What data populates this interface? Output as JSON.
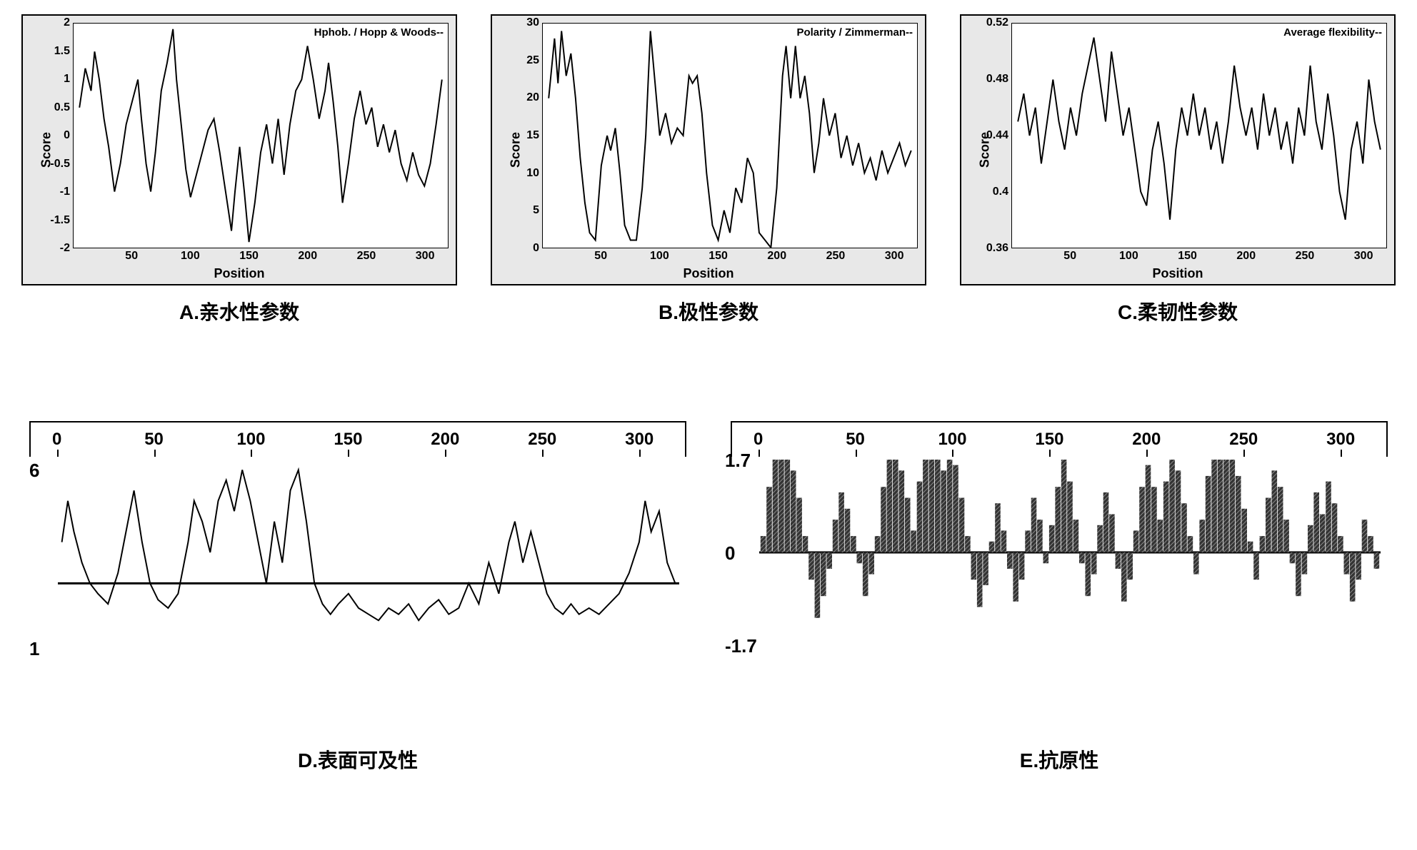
{
  "panelA": {
    "type": "line",
    "legend": "Hphob. / Hopp & Woods--",
    "xlabel": "Position",
    "ylabel": "Score",
    "xlim": [
      0,
      320
    ],
    "ylim": [
      -2,
      2
    ],
    "xticks": [
      50,
      100,
      150,
      200,
      250,
      300
    ],
    "yticks": [
      -2,
      -1.5,
      -1,
      -0.5,
      0,
      0.5,
      1,
      1.5,
      2
    ],
    "background_color": "#e8e8e8",
    "plot_bg": "#ffffff",
    "line_color": "#000000",
    "line_width": 2,
    "title_fontsize": 15,
    "label_fontsize": 18,
    "tick_fontsize": 16,
    "caption": "A.亲水性参数",
    "data": [
      [
        5,
        0.5
      ],
      [
        10,
        1.2
      ],
      [
        15,
        0.8
      ],
      [
        18,
        1.5
      ],
      [
        22,
        1.0
      ],
      [
        26,
        0.3
      ],
      [
        30,
        -0.2
      ],
      [
        35,
        -1.0
      ],
      [
        40,
        -0.5
      ],
      [
        45,
        0.2
      ],
      [
        50,
        0.6
      ],
      [
        55,
        1.0
      ],
      [
        58,
        0.3
      ],
      [
        62,
        -0.5
      ],
      [
        66,
        -1.0
      ],
      [
        70,
        -0.3
      ],
      [
        75,
        0.8
      ],
      [
        80,
        1.3
      ],
      [
        85,
        1.9
      ],
      [
        88,
        1.0
      ],
      [
        92,
        0.2
      ],
      [
        96,
        -0.6
      ],
      [
        100,
        -1.1
      ],
      [
        105,
        -0.7
      ],
      [
        110,
        -0.3
      ],
      [
        115,
        0.1
      ],
      [
        120,
        0.3
      ],
      [
        125,
        -0.3
      ],
      [
        130,
        -1.0
      ],
      [
        135,
        -1.7
      ],
      [
        138,
        -1.0
      ],
      [
        142,
        -0.2
      ],
      [
        146,
        -1.0
      ],
      [
        150,
        -1.9
      ],
      [
        155,
        -1.2
      ],
      [
        160,
        -0.3
      ],
      [
        165,
        0.2
      ],
      [
        170,
        -0.5
      ],
      [
        175,
        0.3
      ],
      [
        180,
        -0.7
      ],
      [
        185,
        0.2
      ],
      [
        190,
        0.8
      ],
      [
        195,
        1.0
      ],
      [
        200,
        1.6
      ],
      [
        205,
        1.0
      ],
      [
        210,
        0.3
      ],
      [
        215,
        0.8
      ],
      [
        218,
        1.3
      ],
      [
        222,
        0.6
      ],
      [
        226,
        -0.2
      ],
      [
        230,
        -1.2
      ],
      [
        235,
        -0.5
      ],
      [
        240,
        0.3
      ],
      [
        245,
        0.8
      ],
      [
        250,
        0.2
      ],
      [
        255,
        0.5
      ],
      [
        260,
        -0.2
      ],
      [
        265,
        0.2
      ],
      [
        270,
        -0.3
      ],
      [
        275,
        0.1
      ],
      [
        280,
        -0.5
      ],
      [
        285,
        -0.8
      ],
      [
        290,
        -0.3
      ],
      [
        295,
        -0.7
      ],
      [
        300,
        -0.9
      ],
      [
        305,
        -0.5
      ],
      [
        310,
        0.2
      ],
      [
        315,
        1.0
      ]
    ]
  },
  "panelB": {
    "type": "line",
    "legend": "Polarity / Zimmerman--",
    "xlabel": "Position",
    "ylabel": "Score",
    "xlim": [
      0,
      320
    ],
    "ylim": [
      0,
      30
    ],
    "xticks": [
      50,
      100,
      150,
      200,
      250,
      300
    ],
    "yticks": [
      0,
      5,
      10,
      15,
      20,
      25,
      30
    ],
    "background_color": "#e8e8e8",
    "plot_bg": "#ffffff",
    "line_color": "#000000",
    "line_width": 2,
    "title_fontsize": 15,
    "label_fontsize": 18,
    "tick_fontsize": 16,
    "caption": "B.极性参数",
    "data": [
      [
        5,
        20
      ],
      [
        10,
        28
      ],
      [
        13,
        22
      ],
      [
        16,
        29
      ],
      [
        20,
        23
      ],
      [
        24,
        26
      ],
      [
        28,
        20
      ],
      [
        32,
        12
      ],
      [
        36,
        6
      ],
      [
        40,
        2
      ],
      [
        45,
        1
      ],
      [
        50,
        11
      ],
      [
        55,
        15
      ],
      [
        58,
        13
      ],
      [
        62,
        16
      ],
      [
        66,
        10
      ],
      [
        70,
        3
      ],
      [
        75,
        1
      ],
      [
        80,
        1
      ],
      [
        85,
        8
      ],
      [
        88,
        15
      ],
      [
        92,
        29
      ],
      [
        96,
        22
      ],
      [
        100,
        15
      ],
      [
        105,
        18
      ],
      [
        110,
        14
      ],
      [
        115,
        16
      ],
      [
        120,
        15
      ],
      [
        125,
        23
      ],
      [
        128,
        22
      ],
      [
        132,
        23
      ],
      [
        136,
        18
      ],
      [
        140,
        10
      ],
      [
        145,
        3
      ],
      [
        150,
        1
      ],
      [
        155,
        5
      ],
      [
        160,
        2
      ],
      [
        165,
        8
      ],
      [
        170,
        6
      ],
      [
        175,
        12
      ],
      [
        180,
        10
      ],
      [
        185,
        2
      ],
      [
        190,
        1
      ],
      [
        195,
        0
      ],
      [
        200,
        8
      ],
      [
        205,
        23
      ],
      [
        208,
        27
      ],
      [
        212,
        20
      ],
      [
        216,
        27
      ],
      [
        220,
        20
      ],
      [
        224,
        23
      ],
      [
        228,
        18
      ],
      [
        232,
        10
      ],
      [
        236,
        14
      ],
      [
        240,
        20
      ],
      [
        245,
        15
      ],
      [
        250,
        18
      ],
      [
        255,
        12
      ],
      [
        260,
        15
      ],
      [
        265,
        11
      ],
      [
        270,
        14
      ],
      [
        275,
        10
      ],
      [
        280,
        12
      ],
      [
        285,
        9
      ],
      [
        290,
        13
      ],
      [
        295,
        10
      ],
      [
        300,
        12
      ],
      [
        305,
        14
      ],
      [
        310,
        11
      ],
      [
        315,
        13
      ]
    ]
  },
  "panelC": {
    "type": "line",
    "legend": "Average flexibility--",
    "xlabel": "Position",
    "ylabel": "Score",
    "xlim": [
      0,
      320
    ],
    "ylim": [
      0.36,
      0.52
    ],
    "xticks": [
      50,
      100,
      150,
      200,
      250,
      300
    ],
    "yticks": [
      0.36,
      0.4,
      0.44,
      0.48,
      0.52
    ],
    "background_color": "#e8e8e8",
    "plot_bg": "#ffffff",
    "line_color": "#000000",
    "line_width": 2,
    "title_fontsize": 15,
    "label_fontsize": 18,
    "tick_fontsize": 16,
    "caption": "C.柔韧性参数",
    "data": [
      [
        5,
        0.45
      ],
      [
        10,
        0.47
      ],
      [
        15,
        0.44
      ],
      [
        20,
        0.46
      ],
      [
        25,
        0.42
      ],
      [
        30,
        0.45
      ],
      [
        35,
        0.48
      ],
      [
        40,
        0.45
      ],
      [
        45,
        0.43
      ],
      [
        50,
        0.46
      ],
      [
        55,
        0.44
      ],
      [
        60,
        0.47
      ],
      [
        65,
        0.49
      ],
      [
        70,
        0.51
      ],
      [
        75,
        0.48
      ],
      [
        80,
        0.45
      ],
      [
        85,
        0.5
      ],
      [
        90,
        0.47
      ],
      [
        95,
        0.44
      ],
      [
        100,
        0.46
      ],
      [
        105,
        0.43
      ],
      [
        110,
        0.4
      ],
      [
        115,
        0.39
      ],
      [
        120,
        0.43
      ],
      [
        125,
        0.45
      ],
      [
        130,
        0.42
      ],
      [
        135,
        0.38
      ],
      [
        140,
        0.43
      ],
      [
        145,
        0.46
      ],
      [
        150,
        0.44
      ],
      [
        155,
        0.47
      ],
      [
        160,
        0.44
      ],
      [
        165,
        0.46
      ],
      [
        170,
        0.43
      ],
      [
        175,
        0.45
      ],
      [
        180,
        0.42
      ],
      [
        185,
        0.45
      ],
      [
        190,
        0.49
      ],
      [
        195,
        0.46
      ],
      [
        200,
        0.44
      ],
      [
        205,
        0.46
      ],
      [
        210,
        0.43
      ],
      [
        215,
        0.47
      ],
      [
        220,
        0.44
      ],
      [
        225,
        0.46
      ],
      [
        230,
        0.43
      ],
      [
        235,
        0.45
      ],
      [
        240,
        0.42
      ],
      [
        245,
        0.46
      ],
      [
        250,
        0.44
      ],
      [
        255,
        0.49
      ],
      [
        260,
        0.45
      ],
      [
        265,
        0.43
      ],
      [
        270,
        0.47
      ],
      [
        275,
        0.44
      ],
      [
        280,
        0.4
      ],
      [
        285,
        0.38
      ],
      [
        290,
        0.43
      ],
      [
        295,
        0.45
      ],
      [
        300,
        0.42
      ],
      [
        305,
        0.48
      ],
      [
        310,
        0.45
      ],
      [
        315,
        0.43
      ]
    ]
  },
  "panelD": {
    "type": "line-bidirectional",
    "xlim": [
      0,
      310
    ],
    "xticks": [
      0,
      50,
      100,
      150,
      200,
      250,
      300
    ],
    "ylabels_values": [
      6,
      1
    ],
    "ylabels": [
      "6",
      "1"
    ],
    "yrange": [
      -3,
      6
    ],
    "zero": 0,
    "line_color": "#000000",
    "line_width": 2,
    "tick_fontsize": 24,
    "caption": "D.表面可及性",
    "data": [
      [
        2,
        2
      ],
      [
        5,
        4
      ],
      [
        8,
        2.5
      ],
      [
        12,
        1
      ],
      [
        16,
        0
      ],
      [
        20,
        -0.5
      ],
      [
        25,
        -1
      ],
      [
        30,
        0.5
      ],
      [
        35,
        3
      ],
      [
        38,
        4.5
      ],
      [
        42,
        2
      ],
      [
        46,
        0
      ],
      [
        50,
        -0.8
      ],
      [
        55,
        -1.2
      ],
      [
        60,
        -0.5
      ],
      [
        65,
        2
      ],
      [
        68,
        4
      ],
      [
        72,
        3
      ],
      [
        76,
        1.5
      ],
      [
        80,
        4
      ],
      [
        84,
        5
      ],
      [
        88,
        3.5
      ],
      [
        92,
        5.5
      ],
      [
        96,
        4
      ],
      [
        100,
        2
      ],
      [
        104,
        0
      ],
      [
        108,
        3
      ],
      [
        112,
        1
      ],
      [
        116,
        4.5
      ],
      [
        120,
        5.5
      ],
      [
        124,
        3
      ],
      [
        128,
        0
      ],
      [
        132,
        -1
      ],
      [
        136,
        -1.5
      ],
      [
        140,
        -1
      ],
      [
        145,
        -0.5
      ],
      [
        150,
        -1.2
      ],
      [
        155,
        -1.5
      ],
      [
        160,
        -1.8
      ],
      [
        165,
        -1.2
      ],
      [
        170,
        -1.5
      ],
      [
        175,
        -1
      ],
      [
        180,
        -1.8
      ],
      [
        185,
        -1.2
      ],
      [
        190,
        -0.8
      ],
      [
        195,
        -1.5
      ],
      [
        200,
        -1.2
      ],
      [
        205,
        0
      ],
      [
        210,
        -1
      ],
      [
        215,
        1
      ],
      [
        220,
        -0.5
      ],
      [
        225,
        2
      ],
      [
        228,
        3
      ],
      [
        232,
        1
      ],
      [
        236,
        2.5
      ],
      [
        240,
        1
      ],
      [
        244,
        -0.5
      ],
      [
        248,
        -1.2
      ],
      [
        252,
        -1.5
      ],
      [
        256,
        -1
      ],
      [
        260,
        -1.5
      ],
      [
        265,
        -1.2
      ],
      [
        270,
        -1.5
      ],
      [
        275,
        -1
      ],
      [
        280,
        -0.5
      ],
      [
        285,
        0.5
      ],
      [
        290,
        2
      ],
      [
        293,
        4
      ],
      [
        296,
        2.5
      ],
      [
        300,
        3.5
      ],
      [
        304,
        1
      ],
      [
        308,
        0
      ]
    ]
  },
  "panelE": {
    "type": "bar-bidirectional",
    "xlim": [
      0,
      310
    ],
    "xticks": [
      0,
      50,
      100,
      150,
      200,
      250,
      300
    ],
    "ylabels_values": [
      1.7,
      0,
      -1.7
    ],
    "ylabels": [
      "1.7",
      "0",
      "-1.7"
    ],
    "yrange": [
      -1.7,
      1.7
    ],
    "bar_color": "#333333",
    "hatch": "diagonal",
    "tick_fontsize": 24,
    "caption": "E.抗原性",
    "data": [
      [
        2,
        0.3
      ],
      [
        5,
        1.2
      ],
      [
        8,
        1.7
      ],
      [
        11,
        1.7
      ],
      [
        14,
        1.7
      ],
      [
        17,
        1.5
      ],
      [
        20,
        1.0
      ],
      [
        23,
        0.3
      ],
      [
        26,
        -0.5
      ],
      [
        29,
        -1.2
      ],
      [
        32,
        -0.8
      ],
      [
        35,
        -0.3
      ],
      [
        38,
        0.6
      ],
      [
        41,
        1.1
      ],
      [
        44,
        0.8
      ],
      [
        47,
        0.3
      ],
      [
        50,
        -0.2
      ],
      [
        53,
        -0.8
      ],
      [
        56,
        -0.4
      ],
      [
        59,
        0.3
      ],
      [
        62,
        1.2
      ],
      [
        65,
        1.7
      ],
      [
        68,
        1.7
      ],
      [
        71,
        1.5
      ],
      [
        74,
        1.0
      ],
      [
        77,
        0.4
      ],
      [
        80,
        1.3
      ],
      [
        83,
        1.7
      ],
      [
        86,
        1.7
      ],
      [
        89,
        1.7
      ],
      [
        92,
        1.5
      ],
      [
        95,
        1.7
      ],
      [
        98,
        1.6
      ],
      [
        101,
        1.0
      ],
      [
        104,
        0.3
      ],
      [
        107,
        -0.5
      ],
      [
        110,
        -1.0
      ],
      [
        113,
        -0.6
      ],
      [
        116,
        0.2
      ],
      [
        119,
        0.9
      ],
      [
        122,
        0.4
      ],
      [
        125,
        -0.3
      ],
      [
        128,
        -0.9
      ],
      [
        131,
        -0.5
      ],
      [
        134,
        0.4
      ],
      [
        137,
        1.0
      ],
      [
        140,
        0.6
      ],
      [
        143,
        -0.2
      ],
      [
        146,
        0.5
      ],
      [
        149,
        1.2
      ],
      [
        152,
        1.7
      ],
      [
        155,
        1.3
      ],
      [
        158,
        0.6
      ],
      [
        161,
        -0.2
      ],
      [
        164,
        -0.8
      ],
      [
        167,
        -0.4
      ],
      [
        170,
        0.5
      ],
      [
        173,
        1.1
      ],
      [
        176,
        0.7
      ],
      [
        179,
        -0.3
      ],
      [
        182,
        -0.9
      ],
      [
        185,
        -0.5
      ],
      [
        188,
        0.4
      ],
      [
        191,
        1.2
      ],
      [
        194,
        1.6
      ],
      [
        197,
        1.2
      ],
      [
        200,
        0.6
      ],
      [
        203,
        1.3
      ],
      [
        206,
        1.7
      ],
      [
        209,
        1.5
      ],
      [
        212,
        0.9
      ],
      [
        215,
        0.3
      ],
      [
        218,
        -0.4
      ],
      [
        221,
        0.6
      ],
      [
        224,
        1.4
      ],
      [
        227,
        1.7
      ],
      [
        230,
        1.7
      ],
      [
        233,
        1.7
      ],
      [
        236,
        1.7
      ],
      [
        239,
        1.4
      ],
      [
        242,
        0.8
      ],
      [
        245,
        0.2
      ],
      [
        248,
        -0.5
      ],
      [
        251,
        0.3
      ],
      [
        254,
        1.0
      ],
      [
        257,
        1.5
      ],
      [
        260,
        1.2
      ],
      [
        263,
        0.6
      ],
      [
        266,
        -0.2
      ],
      [
        269,
        -0.8
      ],
      [
        272,
        -0.4
      ],
      [
        275,
        0.5
      ],
      [
        278,
        1.1
      ],
      [
        281,
        0.7
      ],
      [
        284,
        1.3
      ],
      [
        287,
        0.9
      ],
      [
        290,
        0.3
      ],
      [
        293,
        -0.4
      ],
      [
        296,
        -0.9
      ],
      [
        299,
        -0.5
      ],
      [
        302,
        0.6
      ],
      [
        305,
        0.3
      ],
      [
        308,
        -0.3
      ]
    ]
  }
}
